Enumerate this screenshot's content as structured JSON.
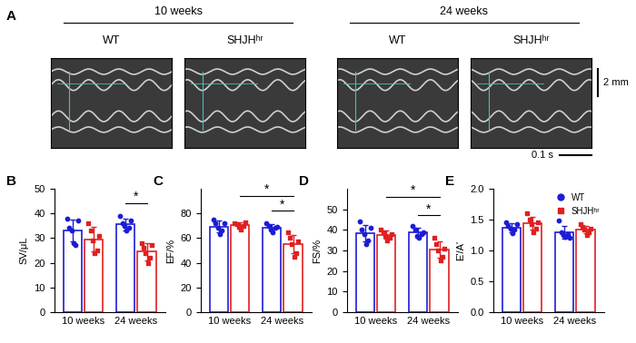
{
  "panel_a": {
    "panel_label": "A",
    "groups": [
      {
        "title": "10 weeks",
        "columns": [
          "WT",
          "SHJHʰʳ"
        ]
      },
      {
        "title": "24 weeks",
        "columns": [
          "WT",
          "SHJHʰʳ"
        ]
      }
    ],
    "scale_bars": {
      "vertical": "2 mm",
      "horizontal": "0.1 s"
    }
  },
  "chart_data": [
    {
      "type": "bar",
      "panel_label": "B",
      "y_label": "SV/μL",
      "categories": [
        "10 weeks",
        "24 weeks"
      ],
      "ylim": [
        0,
        50
      ],
      "yticks": [
        0,
        10,
        20,
        30,
        40,
        50
      ],
      "series": [
        {
          "name": "WT",
          "color": "#1c1cd6",
          "marker": "o",
          "values": [
            33,
            35.5
          ],
          "errors": [
            4.5,
            2.5
          ],
          "points": [
            [
              38,
              34,
              33,
              28,
              27,
              37
            ],
            [
              39,
              36,
              35,
              33,
              34,
              37
            ]
          ]
        },
        {
          "name": "SHJHʰʳ",
          "color": "#e02020",
          "marker": "s",
          "values": [
            29.5,
            24.5
          ],
          "errors": [
            5,
            3.5
          ],
          "points": [
            [
              36,
              33,
              29,
              24,
              25,
              31
            ],
            [
              28,
              26,
              24,
              20,
              22,
              27
            ]
          ]
        }
      ],
      "annotations": [
        {
          "text": "*",
          "between": [
            [
              "24 weeks",
              "WT"
            ],
            [
              "24 weeks",
              "SHJHʰʳ"
            ]
          ],
          "y": 44
        }
      ]
    },
    {
      "type": "bar",
      "panel_label": "C",
      "y_label": "EF/%",
      "categories": [
        "10 weeks",
        "24 weeks"
      ],
      "ylim": [
        0,
        100
      ],
      "yticks": [
        0,
        20,
        40,
        60,
        80
      ],
      "series": [
        {
          "name": "WT",
          "color": "#1c1cd6",
          "marker": "o",
          "values": [
            69.3,
            68.5
          ],
          "errors": [
            5,
            2.5
          ],
          "points": [
            [
              75,
              72,
              68,
              63,
              66,
              72
            ],
            [
              72,
              70,
              67,
              65,
              68,
              69
            ]
          ]
        },
        {
          "name": "SHJHʰʳ",
          "color": "#e02020",
          "marker": "s",
          "values": [
            70.3,
            55
          ],
          "errors": [
            2.5,
            7.5
          ],
          "points": [
            [
              72,
              71,
              69,
              67,
              70,
              73
            ],
            [
              65,
              60,
              55,
              45,
              48,
              57
            ]
          ]
        }
      ],
      "annotations": [
        {
          "text": "*",
          "between": [
            [
              "10 weeks",
              "SHJHʰʳ"
            ],
            [
              "24 weeks",
              "SHJHʰʳ"
            ]
          ],
          "y": 94
        },
        {
          "text": "*",
          "between": [
            [
              "24 weeks",
              "WT"
            ],
            [
              "24 weeks",
              "SHJHʰʳ"
            ]
          ],
          "y": 82
        }
      ]
    },
    {
      "type": "bar",
      "panel_label": "D",
      "y_label": "FS/%",
      "categories": [
        "10 weeks",
        "24 weeks"
      ],
      "ylim": [
        0,
        60
      ],
      "yticks": [
        0,
        10,
        20,
        30,
        40,
        50
      ],
      "series": [
        {
          "name": "WT",
          "color": "#1c1cd6",
          "marker": "o",
          "values": [
            38.5,
            38.7
          ],
          "errors": [
            4,
            2.5
          ],
          "points": [
            [
              44,
              40,
              38,
              33,
              35,
              41
            ],
            [
              42,
              40,
              37,
              36,
              38,
              39
            ]
          ]
        },
        {
          "name": "SHJHʰʳ",
          "color": "#e02020",
          "marker": "s",
          "values": [
            37.5,
            30.3
          ],
          "errors": [
            2,
            4
          ],
          "points": [
            [
              40,
              39,
              37,
              35,
              36,
              38
            ],
            [
              36,
              33,
              30,
              25,
              27,
              31
            ]
          ]
        }
      ],
      "annotations": [
        {
          "text": "*",
          "between": [
            [
              "10 weeks",
              "SHJHʰʳ"
            ],
            [
              "24 weeks",
              "SHJHʰʳ"
            ]
          ],
          "y": 56
        },
        {
          "text": "*",
          "between": [
            [
              "24 weeks",
              "WT"
            ],
            [
              "24 weeks",
              "SHJHʰʳ"
            ]
          ],
          "y": 47
        }
      ]
    },
    {
      "type": "bar",
      "panel_label": "E",
      "y_label": "E'/A'",
      "categories": [
        "10 weeks",
        "24 weeks"
      ],
      "ylim": [
        0,
        2.0
      ],
      "yticks": [
        {
          "value": 0,
          "label": "0.0"
        },
        0.5,
        {
          "value": 1,
          "label": "1.0"
        },
        1.5,
        {
          "value": 2,
          "label": "2.0"
        }
      ],
      "legend": "upper right",
      "series": [
        {
          "name": "WT",
          "color": "#1c1cd6",
          "marker": "o",
          "values": [
            1.37,
            1.29
          ],
          "errors": [
            0.07,
            0.1
          ],
          "points": [
            [
              1.45,
              1.4,
              1.35,
              1.28,
              1.33,
              1.42
            ],
            [
              1.48,
              1.3,
              1.25,
              1.22,
              1.27,
              1.2
            ]
          ]
        },
        {
          "name": "SHJHʰʳ",
          "color": "#e02020",
          "marker": "s",
          "values": [
            1.44,
            1.34
          ],
          "errors": [
            0.11,
            0.06
          ],
          "points": [
            [
              1.6,
              1.5,
              1.42,
              1.3,
              1.35,
              1.45
            ],
            [
              1.42,
              1.38,
              1.33,
              1.25,
              1.3,
              1.35
            ]
          ]
        }
      ]
    }
  ]
}
